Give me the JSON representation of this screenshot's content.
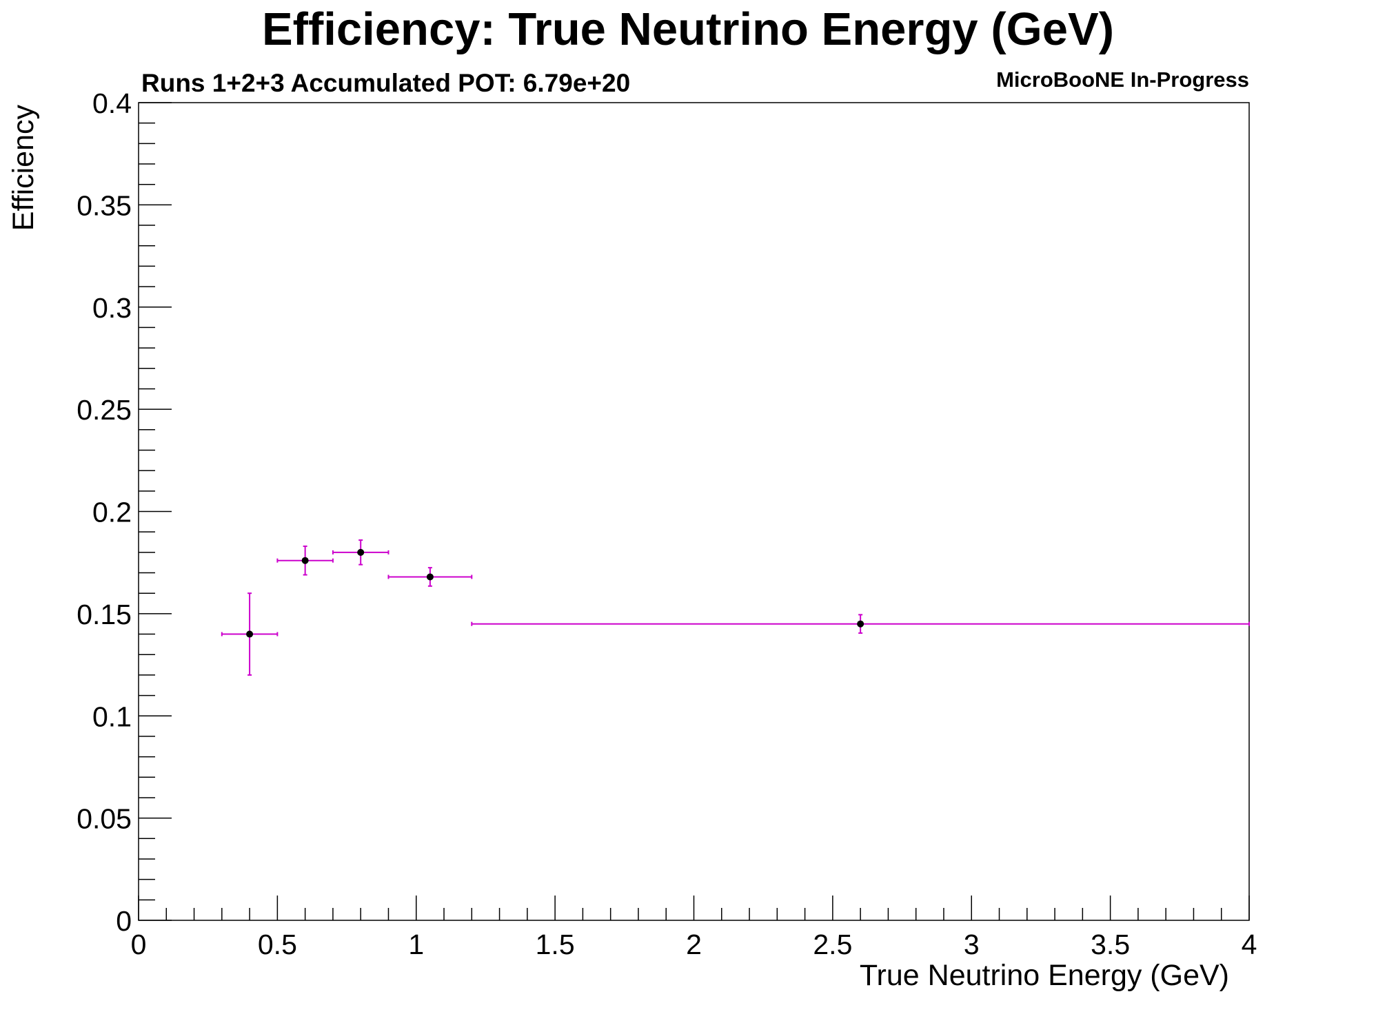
{
  "chart_data": {
    "type": "scatter",
    "title": "Efficiency: True Neutrino Energy (GeV)",
    "subtitle": "Runs 1+2+3 Accumulated POT: 6.79e+20",
    "stamp": "MicroBooNE In-Progress",
    "xlabel": "True Neutrino Energy (GeV)",
    "ylabel": "Efficiency",
    "xlim": [
      0,
      4
    ],
    "ylim": [
      0,
      0.4
    ],
    "x_ticks": [
      "0",
      "0.5",
      "1",
      "1.5",
      "2",
      "2.5",
      "3",
      "3.5",
      "4"
    ],
    "y_ticks": [
      "0",
      "0.05",
      "0.1",
      "0.15",
      "0.2",
      "0.25",
      "0.3",
      "0.35",
      "0.4"
    ],
    "grid": false,
    "marker_color": "#000000",
    "error_bar_color": "#cc00cc",
    "points": [
      {
        "x": 0.4,
        "x_low": 0.3,
        "x_high": 0.5,
        "y": 0.14,
        "y_err": 0.02
      },
      {
        "x": 0.6,
        "x_low": 0.5,
        "x_high": 0.7,
        "y": 0.176,
        "y_err": 0.007
      },
      {
        "x": 0.8,
        "x_low": 0.7,
        "x_high": 0.9,
        "y": 0.18,
        "y_err": 0.006
      },
      {
        "x": 1.05,
        "x_low": 0.9,
        "x_high": 1.2,
        "y": 0.168,
        "y_err": 0.0045
      },
      {
        "x": 2.6,
        "x_low": 1.2,
        "x_high": 4.0,
        "y": 0.145,
        "y_err": 0.0045
      }
    ]
  }
}
